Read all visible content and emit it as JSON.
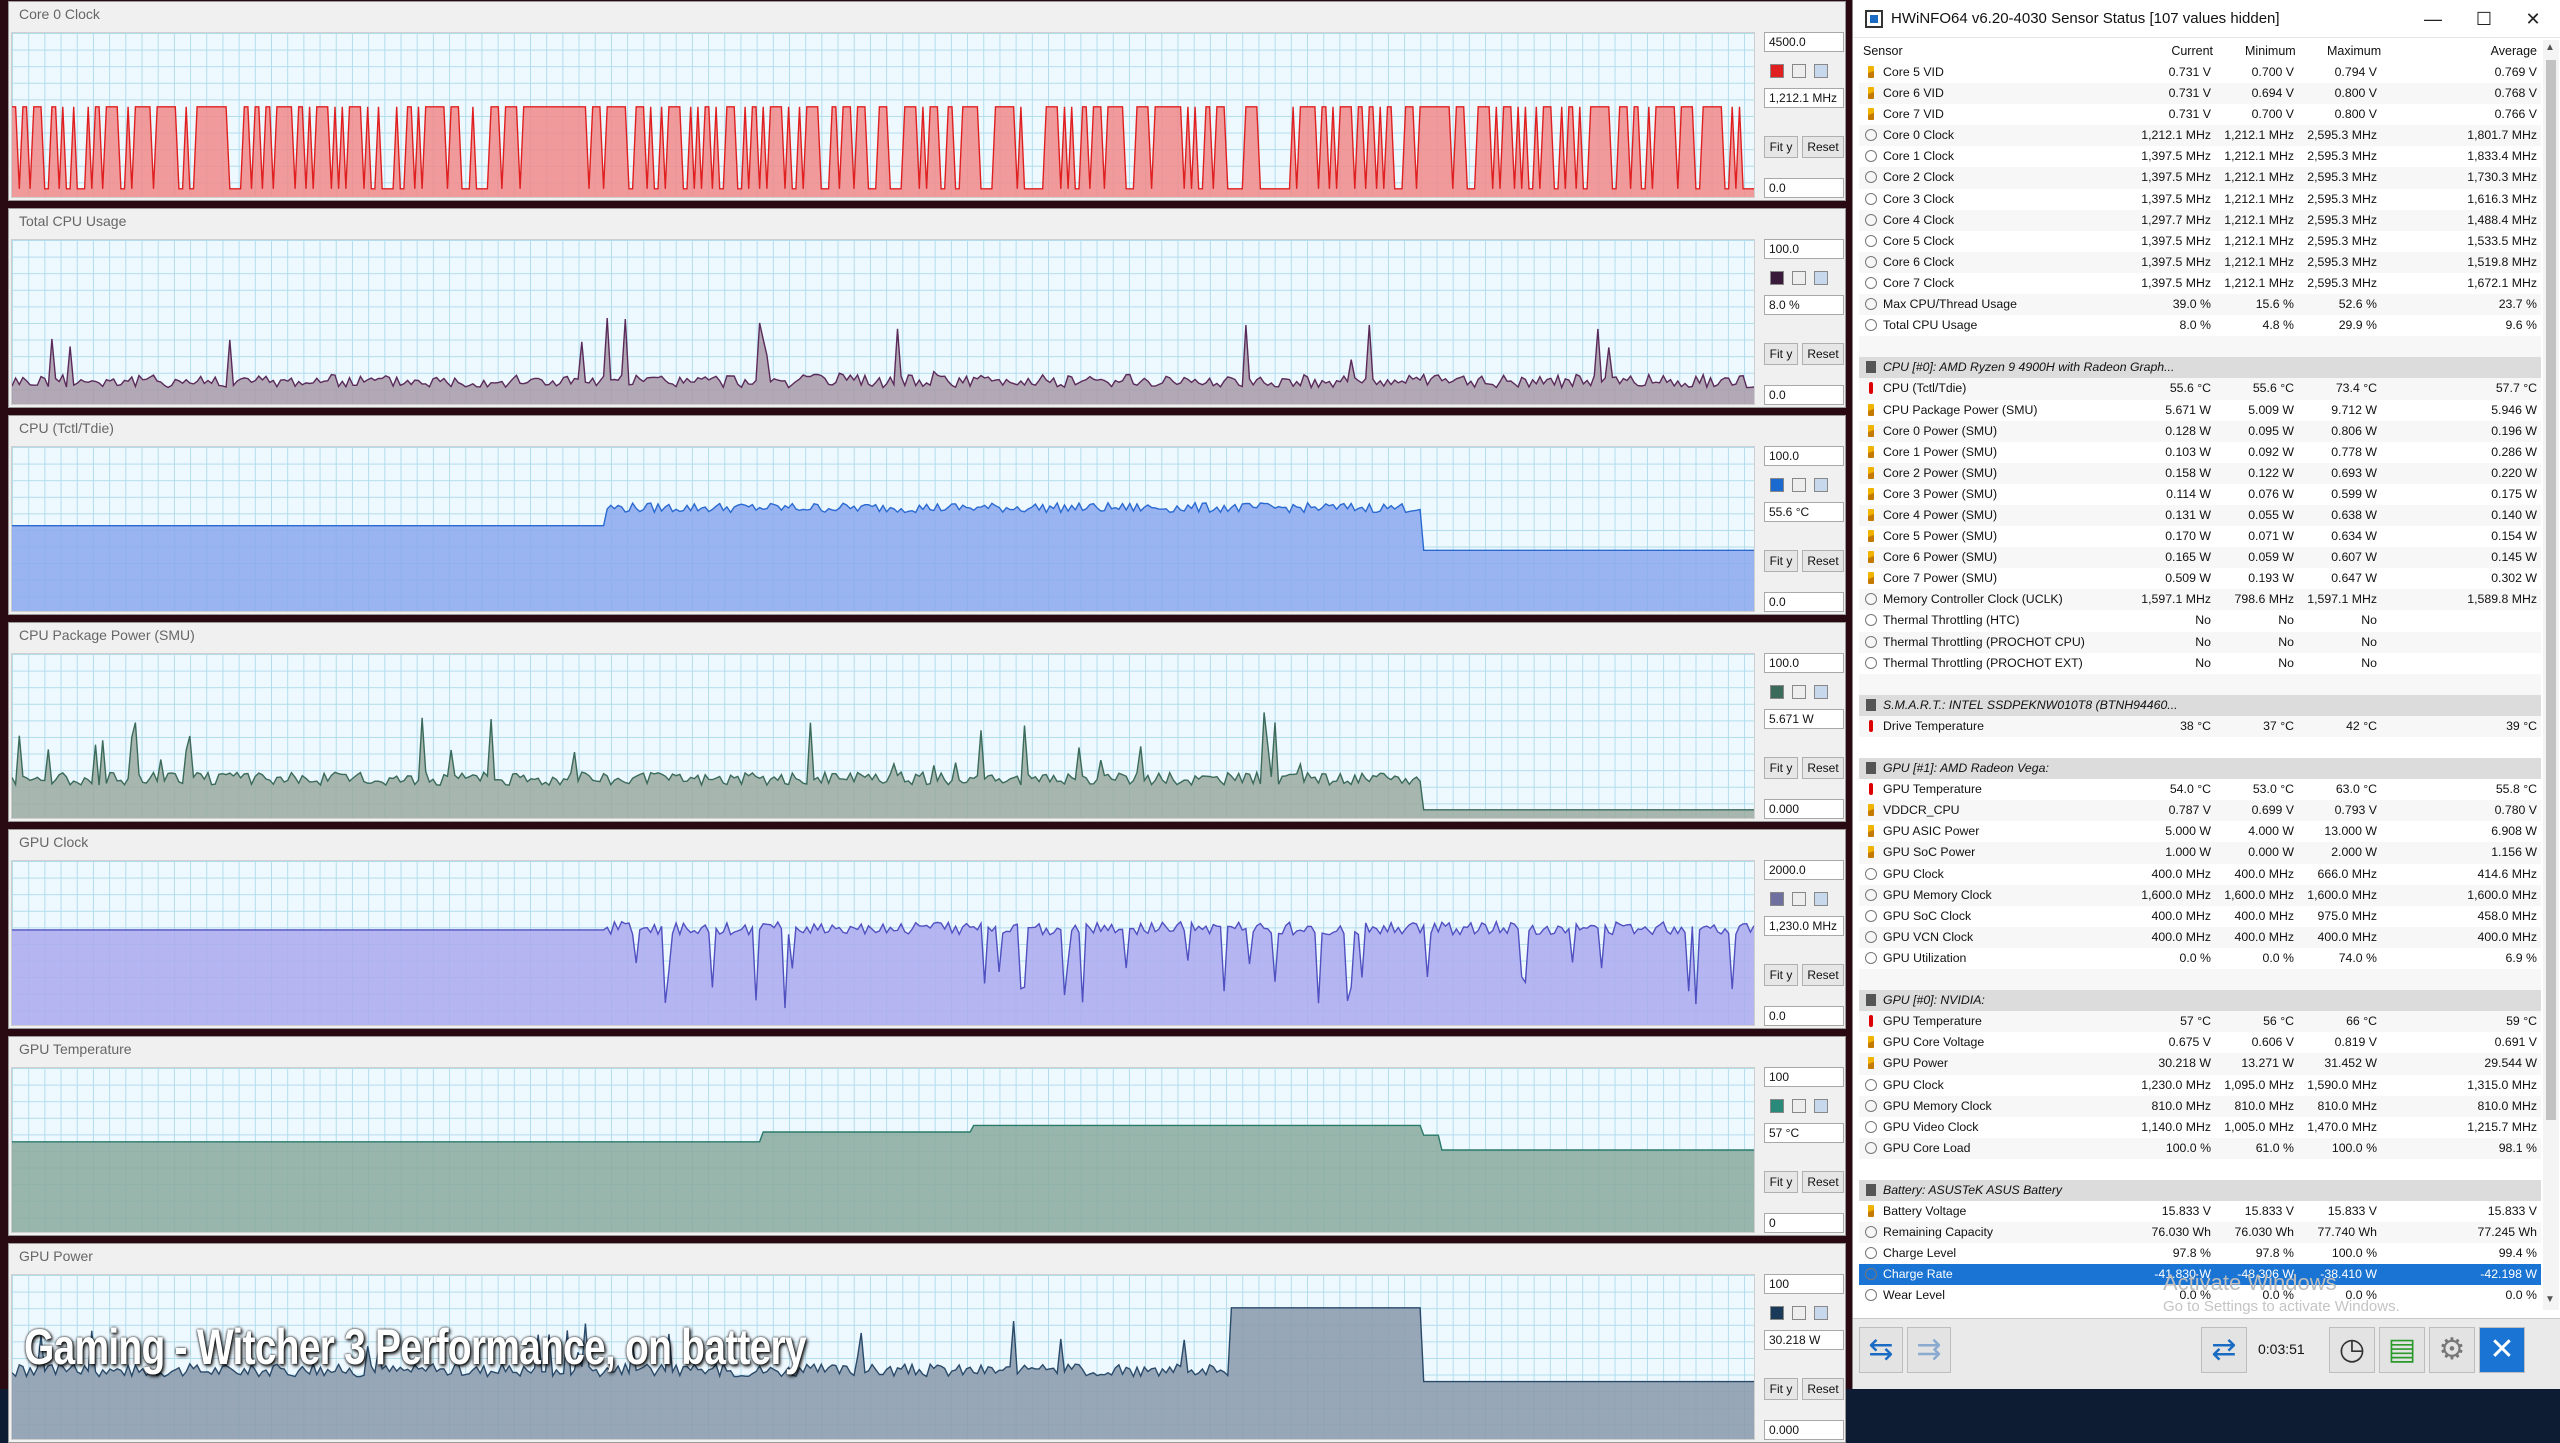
{
  "caption": "Gaming - Witcher 3 Performance, on battery",
  "graphs": [
    {
      "title": "Core 0 Clock",
      "max": "4500.0",
      "cur": "1,212.1 MHz",
      "min": "0.0",
      "color": "#f08a8a",
      "stroke": "#e02020",
      "swatch": "#e02020"
    },
    {
      "title": "Total CPU Usage",
      "max": "100.0",
      "cur": "8.0 %",
      "min": "0.0",
      "color": "#a89aa8",
      "stroke": "#5a2a5a",
      "swatch": "#3a1a3a"
    },
    {
      "title": "CPU (Tctl/Tdie)",
      "max": "100.0",
      "cur": "55.6 °C",
      "min": "0.0",
      "color": "#8aa8ee",
      "stroke": "#2a6ad0",
      "swatch": "#1a6ad0"
    },
    {
      "title": "CPU Package Power (SMU)",
      "max": "100.0",
      "cur": "5.671 W",
      "min": "0.000",
      "color": "#9aaaa0",
      "stroke": "#3a6a5a",
      "swatch": "#3a6a5a"
    },
    {
      "title": "GPU Clock",
      "max": "2000.0",
      "cur": "1,230.0 MHz",
      "min": "0.0",
      "color": "#aaaaee",
      "stroke": "#5050c0",
      "swatch": "#7070a0"
    },
    {
      "title": "GPU Temperature",
      "max": "100",
      "cur": "57 °C",
      "min": "0",
      "color": "#88aa9e",
      "stroke": "#2a7a6a",
      "swatch": "#2a8a7a"
    },
    {
      "title": "GPU Power",
      "max": "100",
      "cur": "30.218 W",
      "min": "0.000",
      "color": "#8899aa",
      "stroke": "#2a4a6a",
      "swatch": "#1a3a5a"
    }
  ],
  "buttons": {
    "fit": "Fit y",
    "reset": "Reset"
  },
  "hwinfo": {
    "title": "HWiNFO64 v6.20-4030 Sensor Status [107 values hidden]",
    "columns": {
      "sensor": "Sensor",
      "current": "Current",
      "minimum": "Minimum",
      "maximum": "Maximum",
      "average": "Average"
    },
    "rows": [
      {
        "i": "volt",
        "n": "Core 5 VID",
        "c": "0.731 V",
        "mi": "0.700 V",
        "ma": "0.794 V",
        "a": "0.769 V"
      },
      {
        "i": "volt",
        "n": "Core 6 VID",
        "c": "0.731 V",
        "mi": "0.694 V",
        "ma": "0.800 V",
        "a": "0.768 V"
      },
      {
        "i": "volt",
        "n": "Core 7 VID",
        "c": "0.731 V",
        "mi": "0.700 V",
        "ma": "0.800 V",
        "a": "0.766 V"
      },
      {
        "i": "clock",
        "n": "Core 0 Clock",
        "c": "1,212.1 MHz",
        "mi": "1,212.1 MHz",
        "ma": "2,595.3 MHz",
        "a": "1,801.7 MHz"
      },
      {
        "i": "clock",
        "n": "Core 1 Clock",
        "c": "1,397.5 MHz",
        "mi": "1,212.1 MHz",
        "ma": "2,595.3 MHz",
        "a": "1,833.4 MHz"
      },
      {
        "i": "clock",
        "n": "Core 2 Clock",
        "c": "1,397.5 MHz",
        "mi": "1,212.1 MHz",
        "ma": "2,595.3 MHz",
        "a": "1,730.3 MHz"
      },
      {
        "i": "clock",
        "n": "Core 3 Clock",
        "c": "1,397.5 MHz",
        "mi": "1,212.1 MHz",
        "ma": "2,595.3 MHz",
        "a": "1,616.3 MHz"
      },
      {
        "i": "clock",
        "n": "Core 4 Clock",
        "c": "1,297.7 MHz",
        "mi": "1,212.1 MHz",
        "ma": "2,595.3 MHz",
        "a": "1,488.4 MHz"
      },
      {
        "i": "clock",
        "n": "Core 5 Clock",
        "c": "1,397.5 MHz",
        "mi": "1,212.1 MHz",
        "ma": "2,595.3 MHz",
        "a": "1,533.5 MHz"
      },
      {
        "i": "clock",
        "n": "Core 6 Clock",
        "c": "1,397.5 MHz",
        "mi": "1,212.1 MHz",
        "ma": "2,595.3 MHz",
        "a": "1,519.8 MHz"
      },
      {
        "i": "clock",
        "n": "Core 7 Clock",
        "c": "1,397.5 MHz",
        "mi": "1,212.1 MHz",
        "ma": "2,595.3 MHz",
        "a": "1,672.1 MHz"
      },
      {
        "i": "clock",
        "n": "Max CPU/Thread Usage",
        "c": "39.0 %",
        "mi": "15.6 %",
        "ma": "52.6 %",
        "a": "23.7 %"
      },
      {
        "i": "clock",
        "n": "Total CPU Usage",
        "c": "8.0 %",
        "mi": "4.8 %",
        "ma": "29.9 %",
        "a": "9.6 %"
      },
      {
        "i": "blank",
        "n": "",
        "c": "",
        "mi": "",
        "ma": "",
        "a": ""
      },
      {
        "i": "sec",
        "n": "CPU [#0]: AMD Ryzen 9 4900H with Radeon Graph...",
        "c": "",
        "mi": "",
        "ma": "",
        "a": ""
      },
      {
        "i": "temp",
        "n": "CPU (Tctl/Tdie)",
        "c": "55.6 °C",
        "mi": "55.6 °C",
        "ma": "73.4 °C",
        "a": "57.7 °C"
      },
      {
        "i": "volt",
        "n": "CPU Package Power (SMU)",
        "c": "5.671 W",
        "mi": "5.009 W",
        "ma": "9.712 W",
        "a": "5.946 W"
      },
      {
        "i": "volt",
        "n": "Core 0 Power (SMU)",
        "c": "0.128 W",
        "mi": "0.095 W",
        "ma": "0.806 W",
        "a": "0.196 W"
      },
      {
        "i": "volt",
        "n": "Core 1 Power (SMU)",
        "c": "0.103 W",
        "mi": "0.092 W",
        "ma": "0.778 W",
        "a": "0.286 W"
      },
      {
        "i": "volt",
        "n": "Core 2 Power (SMU)",
        "c": "0.158 W",
        "mi": "0.122 W",
        "ma": "0.693 W",
        "a": "0.220 W"
      },
      {
        "i": "volt",
        "n": "Core 3 Power (SMU)",
        "c": "0.114 W",
        "mi": "0.076 W",
        "ma": "0.599 W",
        "a": "0.175 W"
      },
      {
        "i": "volt",
        "n": "Core 4 Power (SMU)",
        "c": "0.131 W",
        "mi": "0.055 W",
        "ma": "0.638 W",
        "a": "0.140 W"
      },
      {
        "i": "volt",
        "n": "Core 5 Power (SMU)",
        "c": "0.170 W",
        "mi": "0.071 W",
        "ma": "0.634 W",
        "a": "0.154 W"
      },
      {
        "i": "volt",
        "n": "Core 6 Power (SMU)",
        "c": "0.165 W",
        "mi": "0.059 W",
        "ma": "0.607 W",
        "a": "0.145 W"
      },
      {
        "i": "volt",
        "n": "Core 7 Power (SMU)",
        "c": "0.509 W",
        "mi": "0.193 W",
        "ma": "0.647 W",
        "a": "0.302 W"
      },
      {
        "i": "clock",
        "n": "Memory Controller Clock (UCLK)",
        "c": "1,597.1 MHz",
        "mi": "798.6 MHz",
        "ma": "1,597.1 MHz",
        "a": "1,589.8 MHz"
      },
      {
        "i": "clock",
        "n": "Thermal Throttling (HTC)",
        "c": "No",
        "mi": "No",
        "ma": "No",
        "a": ""
      },
      {
        "i": "clock",
        "n": "Thermal Throttling (PROCHOT CPU)",
        "c": "No",
        "mi": "No",
        "ma": "No",
        "a": ""
      },
      {
        "i": "clock",
        "n": "Thermal Throttling (PROCHOT EXT)",
        "c": "No",
        "mi": "No",
        "ma": "No",
        "a": ""
      },
      {
        "i": "blank",
        "n": "",
        "c": "",
        "mi": "",
        "ma": "",
        "a": ""
      },
      {
        "i": "sec",
        "n": "S.M.A.R.T.: INTEL SSDPEKNW010T8 (BTNH94460...",
        "c": "",
        "mi": "",
        "ma": "",
        "a": ""
      },
      {
        "i": "temp",
        "n": "Drive Temperature",
        "c": "38 °C",
        "mi": "37 °C",
        "ma": "42 °C",
        "a": "39 °C"
      },
      {
        "i": "blank",
        "n": "",
        "c": "",
        "mi": "",
        "ma": "",
        "a": ""
      },
      {
        "i": "sec",
        "n": "GPU [#1]: AMD Radeon Vega:",
        "c": "",
        "mi": "",
        "ma": "",
        "a": ""
      },
      {
        "i": "temp",
        "n": "GPU Temperature",
        "c": "54.0 °C",
        "mi": "53.0 °C",
        "ma": "63.0 °C",
        "a": "55.8 °C"
      },
      {
        "i": "volt",
        "n": "VDDCR_CPU",
        "c": "0.787 V",
        "mi": "0.699 V",
        "ma": "0.793 V",
        "a": "0.780 V"
      },
      {
        "i": "volt",
        "n": "GPU ASIC Power",
        "c": "5.000 W",
        "mi": "4.000 W",
        "ma": "13.000 W",
        "a": "6.908 W"
      },
      {
        "i": "volt",
        "n": "GPU SoC Power",
        "c": "1.000 W",
        "mi": "0.000 W",
        "ma": "2.000 W",
        "a": "1.156 W"
      },
      {
        "i": "clock",
        "n": "GPU Clock",
        "c": "400.0 MHz",
        "mi": "400.0 MHz",
        "ma": "666.0 MHz",
        "a": "414.6 MHz"
      },
      {
        "i": "clock",
        "n": "GPU Memory Clock",
        "c": "1,600.0 MHz",
        "mi": "1,600.0 MHz",
        "ma": "1,600.0 MHz",
        "a": "1,600.0 MHz"
      },
      {
        "i": "clock",
        "n": "GPU SoC Clock",
        "c": "400.0 MHz",
        "mi": "400.0 MHz",
        "ma": "975.0 MHz",
        "a": "458.0 MHz"
      },
      {
        "i": "clock",
        "n": "GPU VCN Clock",
        "c": "400.0 MHz",
        "mi": "400.0 MHz",
        "ma": "400.0 MHz",
        "a": "400.0 MHz"
      },
      {
        "i": "clock",
        "n": "GPU Utilization",
        "c": "0.0 %",
        "mi": "0.0 %",
        "ma": "74.0 %",
        "a": "6.9 %"
      },
      {
        "i": "blank",
        "n": "",
        "c": "",
        "mi": "",
        "ma": "",
        "a": ""
      },
      {
        "i": "sec",
        "n": "GPU [#0]: NVIDIA:",
        "c": "",
        "mi": "",
        "ma": "",
        "a": ""
      },
      {
        "i": "temp",
        "n": "GPU Temperature",
        "c": "57 °C",
        "mi": "56 °C",
        "ma": "66 °C",
        "a": "59 °C"
      },
      {
        "i": "volt",
        "n": "GPU Core Voltage",
        "c": "0.675 V",
        "mi": "0.606 V",
        "ma": "0.819 V",
        "a": "0.691 V"
      },
      {
        "i": "volt",
        "n": "GPU Power",
        "c": "30.218 W",
        "mi": "13.271 W",
        "ma": "31.452 W",
        "a": "29.544 W"
      },
      {
        "i": "clock",
        "n": "GPU Clock",
        "c": "1,230.0 MHz",
        "mi": "1,095.0 MHz",
        "ma": "1,590.0 MHz",
        "a": "1,315.0 MHz"
      },
      {
        "i": "clock",
        "n": "GPU Memory Clock",
        "c": "810.0 MHz",
        "mi": "810.0 MHz",
        "ma": "810.0 MHz",
        "a": "810.0 MHz"
      },
      {
        "i": "clock",
        "n": "GPU Video Clock",
        "c": "1,140.0 MHz",
        "mi": "1,005.0 MHz",
        "ma": "1,470.0 MHz",
        "a": "1,215.7 MHz"
      },
      {
        "i": "clock",
        "n": "GPU Core Load",
        "c": "100.0 %",
        "mi": "61.0 %",
        "ma": "100.0 %",
        "a": "98.1 %"
      },
      {
        "i": "blank",
        "n": "",
        "c": "",
        "mi": "",
        "ma": "",
        "a": ""
      },
      {
        "i": "sec",
        "n": "Battery: ASUSTeK ASUS Battery",
        "c": "",
        "mi": "",
        "ma": "",
        "a": ""
      },
      {
        "i": "volt",
        "n": "Battery Voltage",
        "c": "15.833 V",
        "mi": "15.833 V",
        "ma": "15.833 V",
        "a": "15.833 V"
      },
      {
        "i": "clock",
        "n": "Remaining Capacity",
        "c": "76.030 Wh",
        "mi": "76.030 Wh",
        "ma": "77.740 Wh",
        "a": "77.245 Wh"
      },
      {
        "i": "clock",
        "n": "Charge Level",
        "c": "97.8 %",
        "mi": "97.8 %",
        "ma": "100.0 %",
        "a": "99.4 %"
      },
      {
        "i": "clock",
        "n": "Charge Rate",
        "c": "-41.830 W",
        "mi": "-48.306 W",
        "ma": "-38.410 W",
        "a": "-42.198 W",
        "sel": true
      },
      {
        "i": "clock",
        "n": "Wear Level",
        "c": "0.0 %",
        "mi": "0.0 %",
        "ma": "0.0 %",
        "a": "0.0 %"
      }
    ],
    "timer": "0:03:51",
    "watermark": "Activate Windows",
    "watermark2": "Go to Settings to activate Windows."
  }
}
